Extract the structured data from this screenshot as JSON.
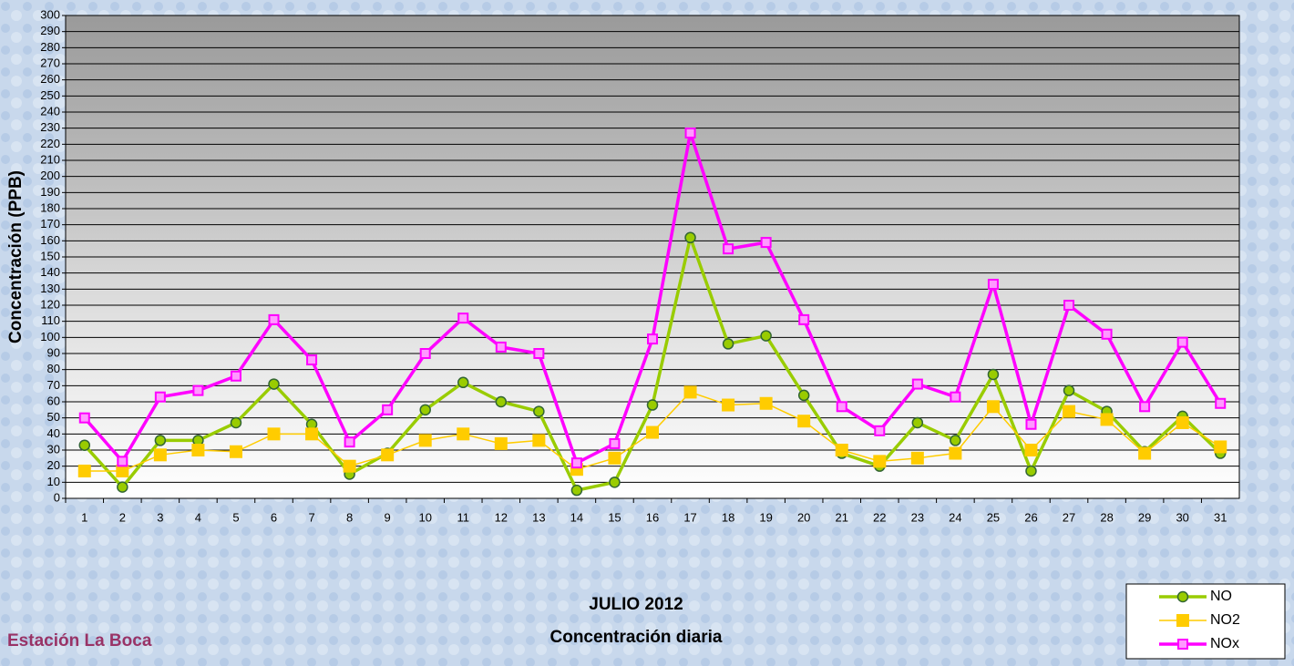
{
  "chart_data": {
    "type": "line",
    "title": "JULIO 2012",
    "subtitle": "Concentración diaria",
    "annotation": "Estación La Boca",
    "y_label": "Concentración  (PPB)",
    "categories": [
      "1",
      "2",
      "3",
      "4",
      "5",
      "6",
      "7",
      "8",
      "9",
      "10",
      "11",
      "12",
      "13",
      "14",
      "15",
      "16",
      "17",
      "18",
      "19",
      "20",
      "21",
      "22",
      "23",
      "24",
      "25",
      "26",
      "27",
      "28",
      "29",
      "30",
      "31"
    ],
    "series": [
      {
        "name": "NO",
        "color": "#99cc00",
        "values": [
          33,
          7,
          36,
          36,
          47,
          71,
          46,
          15,
          28,
          55,
          72,
          60,
          54,
          5,
          10,
          58,
          162,
          96,
          101,
          64,
          28,
          20,
          47,
          36,
          77,
          17,
          67,
          54,
          29,
          51,
          28
        ]
      },
      {
        "name": "NO2",
        "color": "#ffcc00",
        "values": [
          17,
          17,
          27,
          30,
          29,
          40,
          40,
          20,
          27,
          36,
          40,
          34,
          36,
          18,
          25,
          41,
          66,
          58,
          59,
          48,
          30,
          23,
          25,
          28,
          57,
          30,
          54,
          49,
          28,
          47,
          32
        ]
      },
      {
        "name": "NOx",
        "color": "#ff00ff",
        "values": [
          50,
          23,
          63,
          67,
          76,
          111,
          86,
          35,
          55,
          90,
          112,
          94,
          90,
          22,
          34,
          99,
          227,
          155,
          159,
          111,
          57,
          42,
          71,
          63,
          133,
          46,
          120,
          102,
          57,
          97,
          59
        ]
      }
    ],
    "ylim": [
      0,
      300
    ],
    "yticks": [
      0,
      10,
      20,
      30,
      40,
      50,
      60,
      70,
      80,
      90,
      100,
      110,
      120,
      130,
      140,
      150,
      160,
      170,
      180,
      190,
      200,
      210,
      220,
      230,
      240,
      250,
      260,
      270,
      280,
      290,
      300
    ],
    "grid": true,
    "legend": "bottom-right"
  }
}
